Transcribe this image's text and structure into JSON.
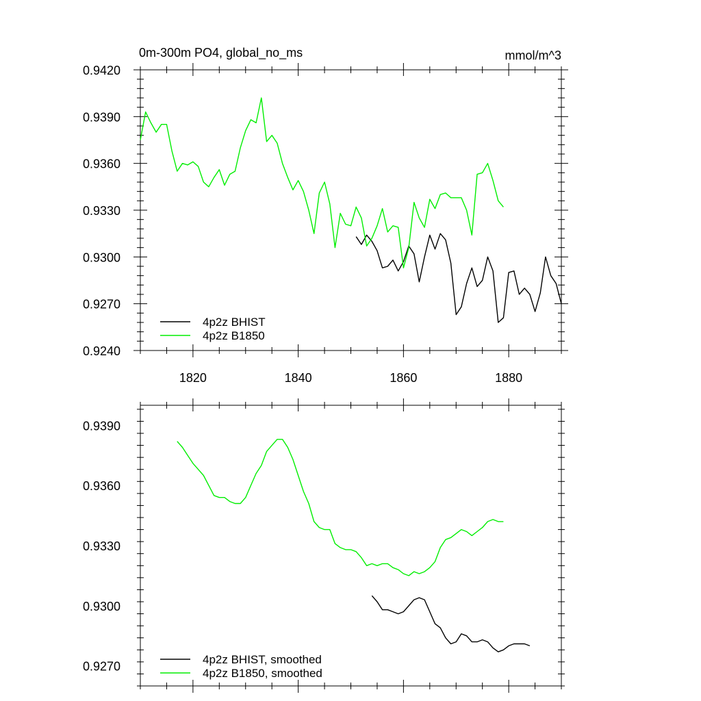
{
  "chart_data": [
    {
      "type": "line",
      "title": "0m-300m PO4, global_no_ms",
      "units": "mmol/m^3",
      "xlim": [
        1810,
        1890
      ],
      "ylim": [
        0.924,
        0.942
      ],
      "x_ticks": [
        1820,
        1840,
        1860,
        1880
      ],
      "x_tick_labels": [
        "1820",
        "1840",
        "1860",
        "1880"
      ],
      "y_ticks": [
        0.924,
        0.927,
        0.93,
        0.933,
        0.936,
        0.939,
        0.942
      ],
      "y_tick_labels": [
        "0.9240",
        "0.9270",
        "0.9300",
        "0.9330",
        "0.9360",
        "0.9390",
        "0.9420"
      ],
      "legend_position": "bottom-left",
      "series": [
        {
          "name": "4p2z BHIST",
          "color": "#000000",
          "x_start": 1851,
          "values": [
            0.9313,
            0.9308,
            0.9314,
            0.931,
            0.9304,
            0.9293,
            0.9294,
            0.9298,
            0.9291,
            0.9297,
            0.9307,
            0.9302,
            0.9284,
            0.93,
            0.9314,
            0.9305,
            0.9315,
            0.9311,
            0.9296,
            0.9263,
            0.9268,
            0.9283,
            0.9293,
            0.9281,
            0.9285,
            0.93,
            0.9291,
            0.9258,
            0.9261,
            0.929,
            0.9291,
            0.9276,
            0.928,
            0.9276,
            0.9265,
            0.9277,
            0.93,
            0.9288,
            0.9283,
            0.927
          ]
        },
        {
          "name": "4p2z B1850",
          "color": "#00ee00",
          "x_start": 1810,
          "values": [
            0.9375,
            0.9393,
            0.9386,
            0.938,
            0.9385,
            0.9385,
            0.9368,
            0.9355,
            0.936,
            0.9359,
            0.9361,
            0.9358,
            0.9348,
            0.9345,
            0.9351,
            0.9356,
            0.9346,
            0.9353,
            0.9355,
            0.937,
            0.9381,
            0.9388,
            0.9386,
            0.9402,
            0.9374,
            0.9378,
            0.9373,
            0.936,
            0.9351,
            0.9343,
            0.9349,
            0.9342,
            0.933,
            0.9315,
            0.9341,
            0.9348,
            0.9334,
            0.9306,
            0.9328,
            0.9321,
            0.932,
            0.9332,
            0.9325,
            0.9307,
            0.9312,
            0.932,
            0.9331,
            0.9316,
            0.932,
            0.9319,
            0.9293,
            0.9306,
            0.9335,
            0.9325,
            0.9319,
            0.9337,
            0.9331,
            0.934,
            0.9341,
            0.9338,
            0.9338,
            0.9338,
            0.933,
            0.9314,
            0.9353,
            0.9354,
            0.936,
            0.9349,
            0.9336,
            0.9332
          ]
        }
      ]
    },
    {
      "type": "line",
      "title": "",
      "xlim": [
        1810,
        1890
      ],
      "ylim": [
        0.926,
        0.94
      ],
      "x_ticks": [
        1820,
        1840,
        1860,
        1880
      ],
      "x_tick_labels": [],
      "y_ticks": [
        0.927,
        0.93,
        0.933,
        0.936,
        0.939
      ],
      "y_tick_labels": [
        "0.9270",
        "0.9300",
        "0.9330",
        "0.9360",
        "0.9390"
      ],
      "legend_position": "bottom-left",
      "series": [
        {
          "name": "4p2z BHIST, smoothed",
          "color": "#000000",
          "x_start": 1854,
          "values": [
            0.9305,
            0.9302,
            0.9298,
            0.9298,
            0.9297,
            0.9296,
            0.9297,
            0.93,
            0.9303,
            0.9304,
            0.9303,
            0.9297,
            0.9291,
            0.9289,
            0.9284,
            0.9281,
            0.9282,
            0.9286,
            0.9285,
            0.9282,
            0.9282,
            0.9283,
            0.9282,
            0.9279,
            0.9277,
            0.9278,
            0.928,
            0.9281,
            0.9281,
            0.9281,
            0.928
          ]
        },
        {
          "name": "4p2z B1850, smoothed",
          "color": "#00ee00",
          "x_start": 1817,
          "values": [
            0.9382,
            0.9379,
            0.9375,
            0.9371,
            0.9368,
            0.9365,
            0.936,
            0.9355,
            0.9354,
            0.9354,
            0.9352,
            0.9351,
            0.9351,
            0.9354,
            0.936,
            0.9366,
            0.937,
            0.9377,
            0.938,
            0.9383,
            0.9383,
            0.9379,
            0.9373,
            0.9365,
            0.9357,
            0.9351,
            0.9342,
            0.9339,
            0.9338,
            0.9338,
            0.9331,
            0.9329,
            0.9328,
            0.9328,
            0.9327,
            0.9324,
            0.932,
            0.9321,
            0.932,
            0.9321,
            0.9321,
            0.9319,
            0.9318,
            0.9316,
            0.9315,
            0.9317,
            0.9316,
            0.9317,
            0.9319,
            0.9322,
            0.9329,
            0.9333,
            0.9334,
            0.9336,
            0.9338,
            0.9337,
            0.9335,
            0.9337,
            0.9339,
            0.9342,
            0.9343,
            0.9342,
            0.9342
          ]
        }
      ]
    }
  ]
}
